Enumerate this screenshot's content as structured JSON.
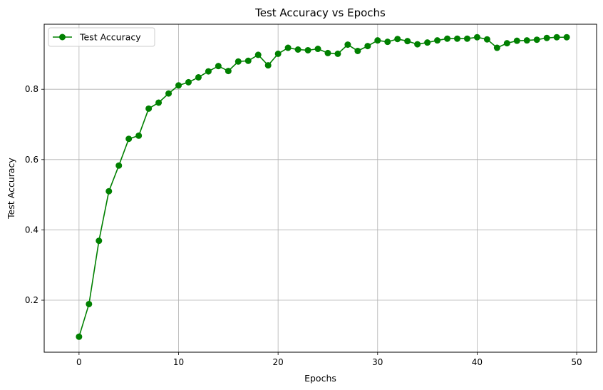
{
  "chart_data": {
    "type": "line",
    "title": "Test Accuracy vs Epochs",
    "xlabel": "Epochs",
    "ylabel": "Test Accuracy",
    "xlim": [
      -3.5,
      52
    ],
    "ylim": [
      0.052,
      0.985
    ],
    "xticks": [
      0,
      10,
      20,
      30,
      40,
      50
    ],
    "yticks": [
      0.2,
      0.4,
      0.6,
      0.8
    ],
    "grid": true,
    "legend": "top-left",
    "series": [
      {
        "name": "Test Accuracy",
        "color": "#008000",
        "marker": "circle",
        "x": [
          0,
          1,
          2,
          3,
          4,
          5,
          6,
          7,
          8,
          9,
          10,
          11,
          12,
          13,
          14,
          15,
          16,
          17,
          18,
          19,
          20,
          21,
          22,
          23,
          24,
          25,
          26,
          27,
          28,
          29,
          30,
          31,
          32,
          33,
          34,
          35,
          36,
          37,
          38,
          39,
          40,
          41,
          42,
          43,
          44,
          45,
          46,
          47,
          48,
          49
        ],
        "values": [
          0.096,
          0.189,
          0.369,
          0.51,
          0.583,
          0.659,
          0.668,
          0.745,
          0.762,
          0.788,
          0.811,
          0.82,
          0.834,
          0.851,
          0.866,
          0.852,
          0.879,
          0.881,
          0.898,
          0.868,
          0.901,
          0.918,
          0.913,
          0.911,
          0.915,
          0.903,
          0.901,
          0.927,
          0.909,
          0.923,
          0.939,
          0.935,
          0.943,
          0.937,
          0.928,
          0.933,
          0.939,
          0.944,
          0.944,
          0.944,
          0.948,
          0.942,
          0.918,
          0.931,
          0.938,
          0.939,
          0.941,
          0.946,
          0.948,
          0.948
        ]
      }
    ]
  }
}
